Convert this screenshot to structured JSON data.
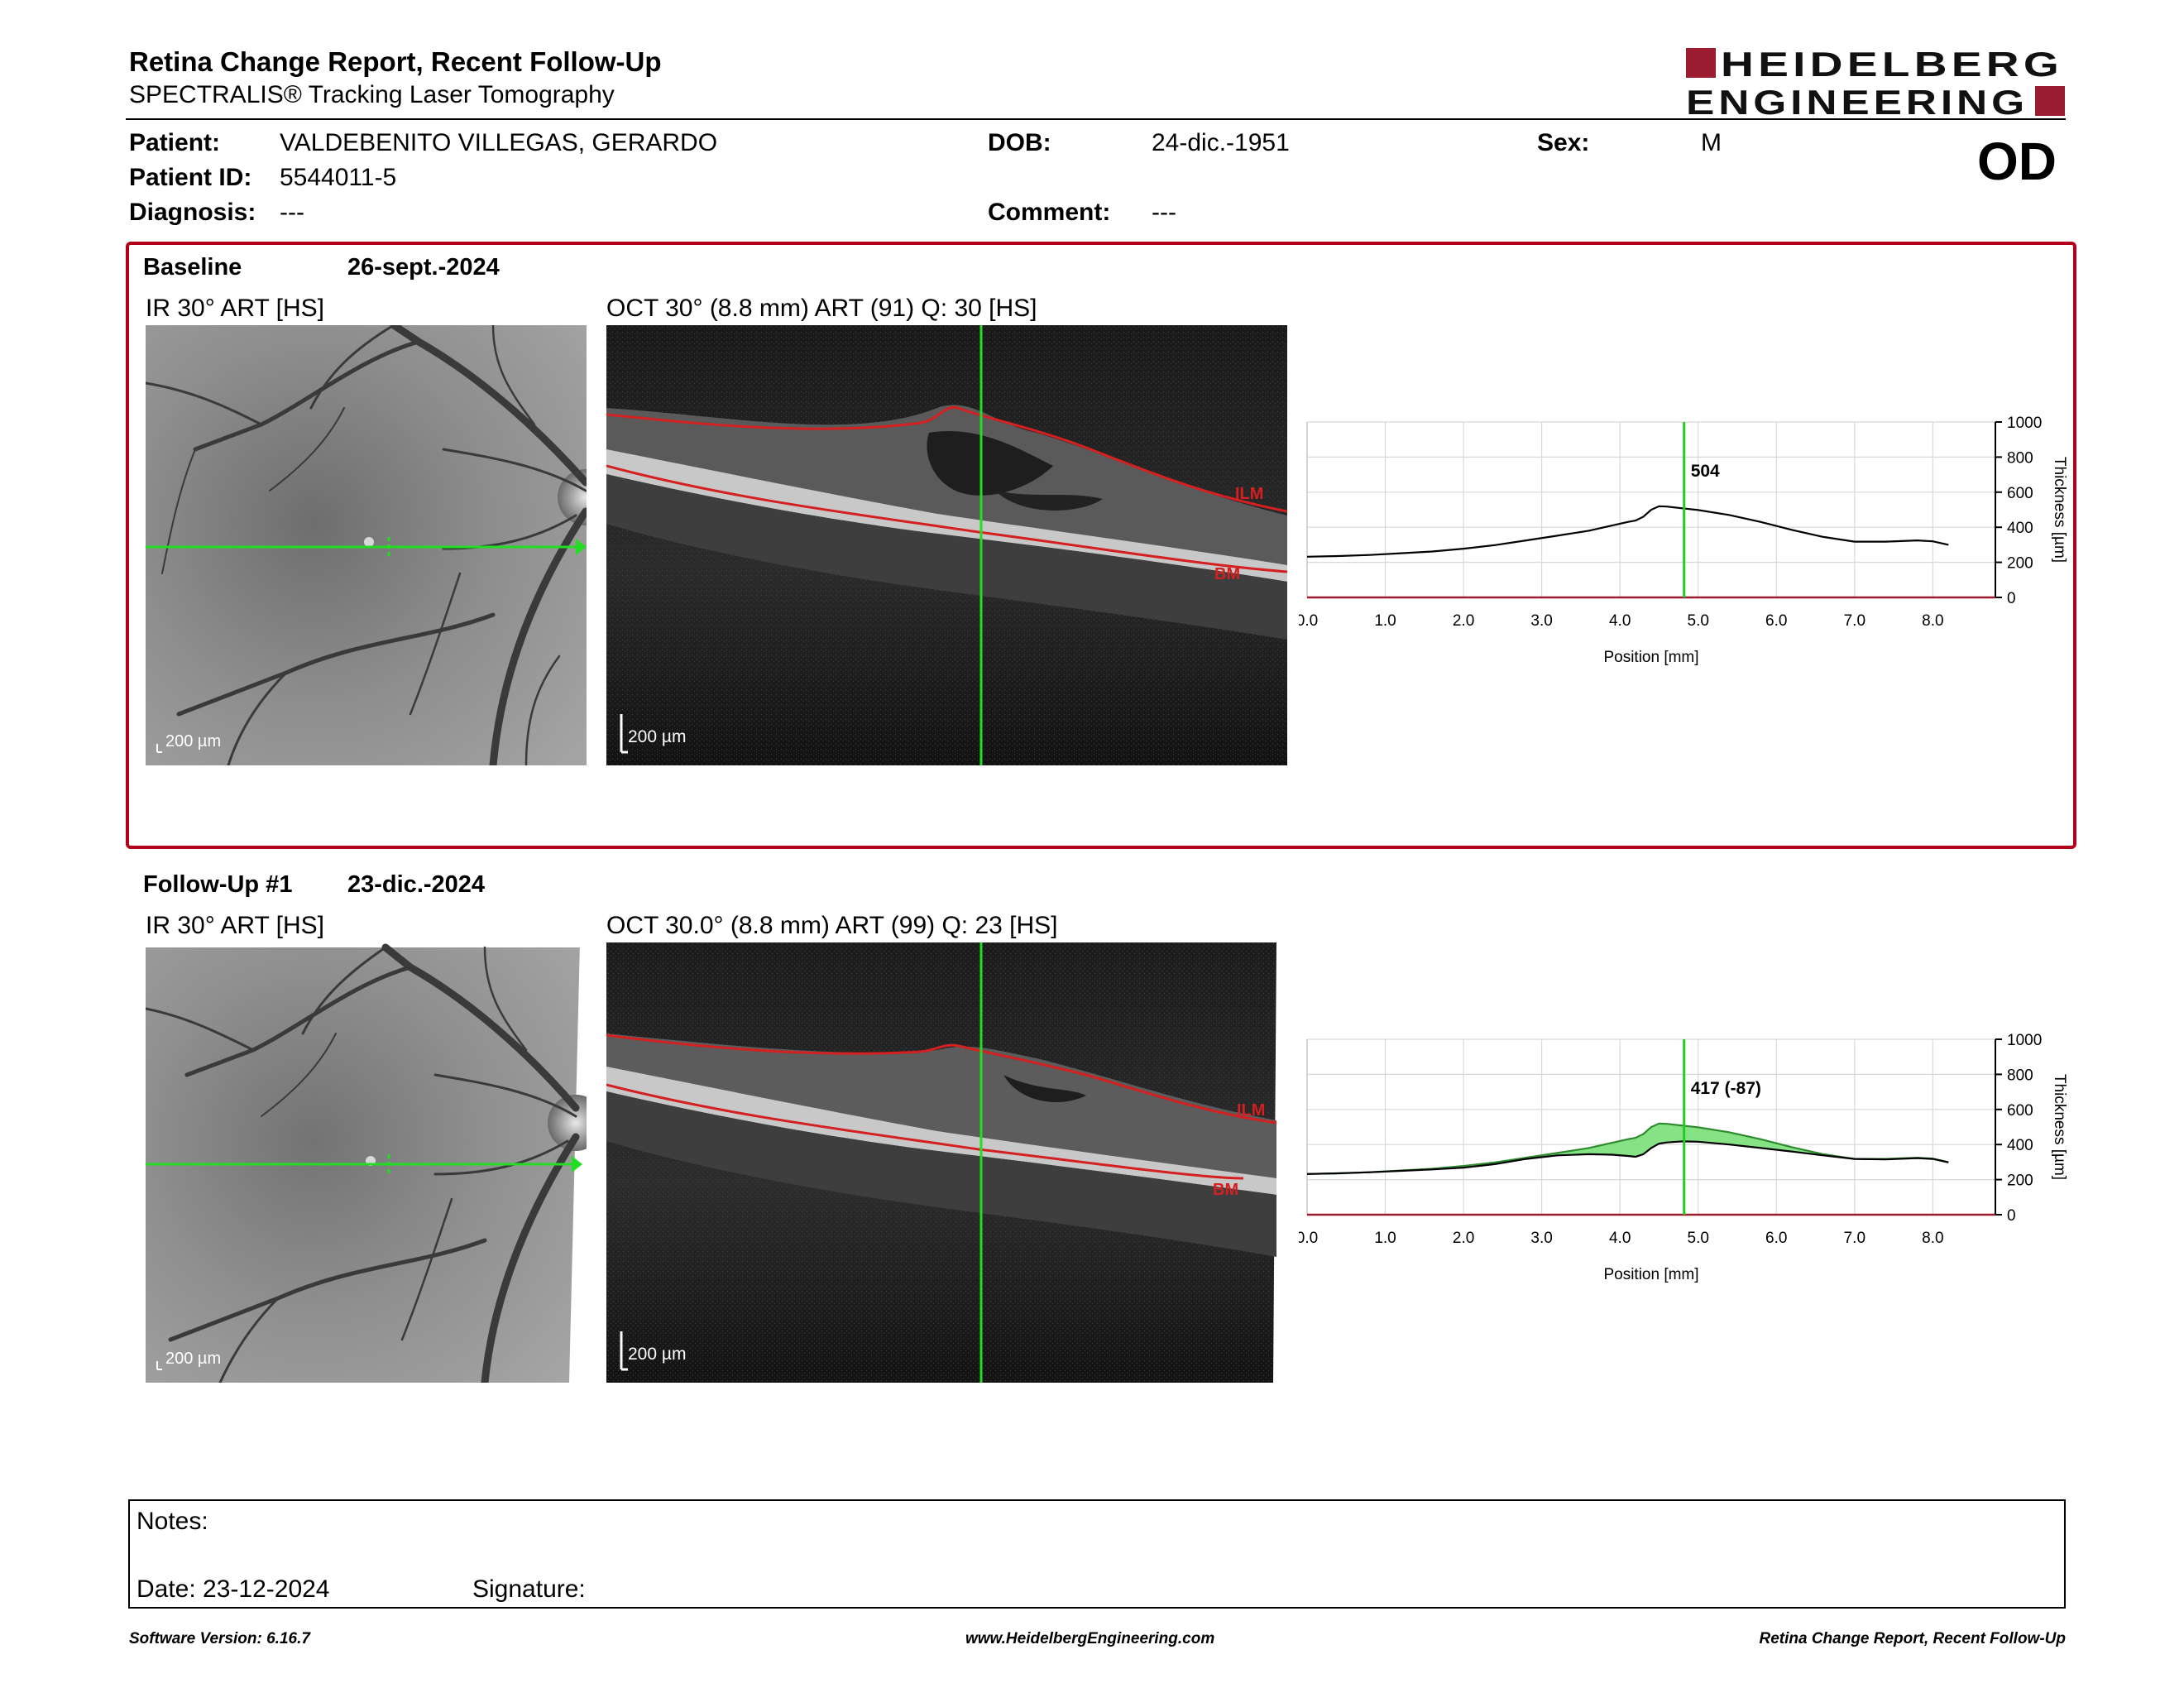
{
  "report": {
    "title": "Retina Change Report, Recent Follow-Up",
    "subtitle": "SPECTRALIS® Tracking Laser Tomography",
    "logo_line1": "HEIDELBERG",
    "logo_line2": "ENGINEERING",
    "brand_color": "#9b1b30"
  },
  "patient": {
    "patient_label": "Patient:",
    "patient_name": "VALDEBENITO VILLEGAS, GERARDO",
    "id_label": "Patient ID:",
    "id_value": "5544011-5",
    "diagnosis_label": "Diagnosis:",
    "diagnosis_value": "---",
    "dob_label": "DOB:",
    "dob_value": "24-dic.-1951",
    "comment_label": "Comment:",
    "comment_value": "---",
    "sex_label": "Sex:",
    "sex_value": "M",
    "eye": "OD"
  },
  "baseline": {
    "label": "Baseline",
    "date": "26-sept.-2024",
    "ir_caption": "IR 30° ART [HS]",
    "oct_caption": "OCT 30° (8.8 mm) ART (91) Q: 30 [HS]",
    "scale_label": "200 µm",
    "ilm_label": "ILM",
    "bm_label": "BM",
    "box_color": "#b2001b"
  },
  "followup": {
    "label": "Follow-Up #1",
    "date": "23-dic.-2024",
    "ir_caption": "IR 30° ART [HS]",
    "oct_caption": "OCT 30.0° (8.8 mm) ART (99) Q: 23 [HS]",
    "scale_label": "200 µm",
    "ilm_label": "ILM",
    "bm_label": "BM"
  },
  "chart_data": [
    {
      "type": "line",
      "title": "",
      "xlabel": "Position [mm]",
      "ylabel": "Thickness [µm]",
      "xlim": [
        0,
        8.8
      ],
      "ylim": [
        0,
        1000
      ],
      "xticks": [
        "0.0",
        "1.0",
        "2.0",
        "3.0",
        "4.0",
        "5.0",
        "6.0",
        "7.0",
        "8.0"
      ],
      "yticks": [
        "0",
        "200",
        "400",
        "600",
        "800",
        "1000"
      ],
      "grid": true,
      "cursor_x": 4.82,
      "cursor_label": "504",
      "series": [
        {
          "x": [
            0.0,
            0.4,
            0.8,
            1.2,
            1.6,
            2.0,
            2.4,
            2.8,
            3.2,
            3.6,
            3.9,
            4.1,
            4.2,
            4.3,
            4.4,
            4.5,
            4.6,
            4.8,
            5.0,
            5.4,
            5.8,
            6.2,
            6.6,
            7.0,
            7.4,
            7.8,
            8.0,
            8.2
          ],
          "y": [
            232,
            236,
            242,
            252,
            262,
            278,
            298,
            325,
            352,
            380,
            410,
            430,
            438,
            460,
            500,
            520,
            518,
            508,
            498,
            470,
            430,
            385,
            345,
            318,
            318,
            325,
            320,
            300
          ]
        }
      ]
    },
    {
      "type": "area",
      "title": "",
      "xlabel": "Position [mm]",
      "ylabel": "Thickness [µm]",
      "xlim": [
        0,
        8.8
      ],
      "ylim": [
        0,
        1000
      ],
      "xticks": [
        "0.0",
        "1.0",
        "2.0",
        "3.0",
        "4.0",
        "5.0",
        "6.0",
        "7.0",
        "8.0"
      ],
      "yticks": [
        "0",
        "200",
        "400",
        "600",
        "800",
        "1000"
      ],
      "grid": true,
      "cursor_x": 4.82,
      "cursor_label": "417 (-87)",
      "fill_color": "#7ee07e",
      "series": [
        {
          "x": [
            0.0,
            0.4,
            0.8,
            1.2,
            1.6,
            2.0,
            2.4,
            2.8,
            3.2,
            3.6,
            3.9,
            4.1,
            4.2,
            4.3,
            4.4,
            4.5,
            4.6,
            4.8,
            5.0,
            5.4,
            5.8,
            6.2,
            6.6,
            7.0,
            7.4,
            7.8,
            8.0,
            8.2
          ],
          "y": [
            232,
            236,
            242,
            252,
            262,
            278,
            298,
            325,
            352,
            380,
            410,
            430,
            438,
            460,
            500,
            520,
            518,
            508,
            498,
            470,
            430,
            385,
            345,
            318,
            318,
            325,
            320,
            300
          ]
        },
        {
          "x": [
            0.0,
            0.4,
            0.8,
            1.2,
            1.6,
            2.0,
            2.4,
            2.8,
            3.2,
            3.6,
            3.9,
            4.1,
            4.2,
            4.3,
            4.4,
            4.5,
            4.6,
            4.8,
            5.0,
            5.4,
            5.8,
            6.2,
            6.6,
            7.0,
            7.4,
            7.8,
            8.0,
            8.2
          ],
          "y": [
            232,
            236,
            242,
            250,
            258,
            268,
            288,
            318,
            338,
            345,
            342,
            335,
            330,
            345,
            380,
            405,
            412,
            418,
            416,
            400,
            380,
            360,
            338,
            318,
            315,
            322,
            318,
            298
          ]
        }
      ]
    }
  ],
  "notes": {
    "notes_label": "Notes:",
    "date_label": "Date: 23-12-2024",
    "signature_label": "Signature:"
  },
  "footer": {
    "software": "Software Version: 6.16.7",
    "website": "www.HeidelbergEngineering.com",
    "report_name": "Retina Change Report, Recent Follow-Up"
  }
}
